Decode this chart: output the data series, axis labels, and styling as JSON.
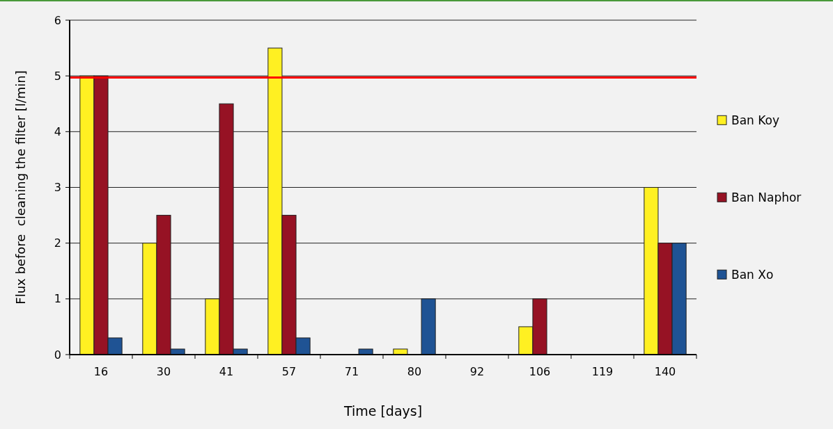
{
  "chart_data": {
    "type": "bar",
    "xlabel": "Time [days]",
    "ylabel": "Flux before  cleaning the filter [l/min]",
    "categories": [
      "16",
      "30",
      "41",
      "57",
      "71",
      "80",
      "92",
      "106",
      "119",
      "140"
    ],
    "series": [
      {
        "name": "Ban Koy",
        "color": "#fff022",
        "values": [
          5,
          2,
          1,
          5.5,
          0,
          0.1,
          0,
          0.5,
          0,
          3
        ]
      },
      {
        "name": "Ban Naphor",
        "color": "#961224",
        "values": [
          5,
          2.5,
          4.5,
          2.5,
          0,
          0,
          0,
          1,
          0,
          2
        ]
      },
      {
        "name": "Ban Xo",
        "color": "#1f5394",
        "values": [
          0.3,
          0.1,
          0.1,
          0.3,
          0.1,
          1,
          0,
          0,
          0,
          2
        ]
      }
    ],
    "ylim": [
      0,
      6
    ],
    "yticks": [
      0,
      1,
      2,
      3,
      4,
      5,
      6
    ],
    "grid": "y",
    "legend": "right",
    "ref_lines": [
      {
        "axis": "y",
        "value": 4.97,
        "color": "#ff0000"
      }
    ]
  }
}
